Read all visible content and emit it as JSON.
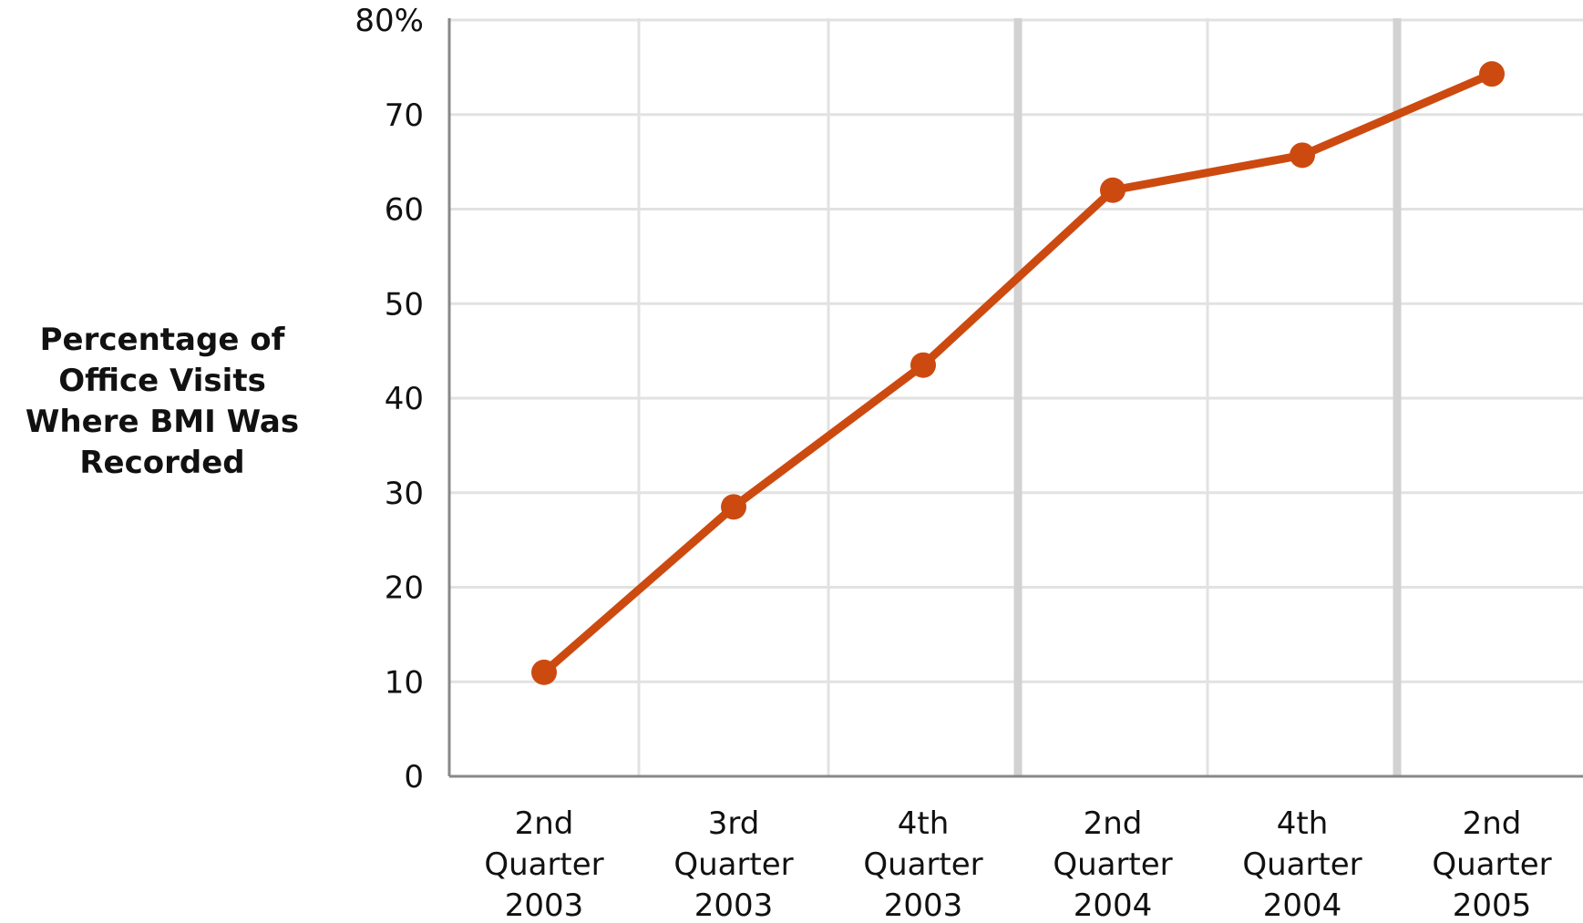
{
  "chart_data": {
    "type": "line",
    "xlabel": "",
    "ylabel": "Percentage of Office Visits Where BMI Was Recorded",
    "ylabel_lines": [
      "Percentage of",
      "Office Visits",
      "Where BMI Was",
      "Recorded"
    ],
    "ylim": [
      0,
      80
    ],
    "yticks": [
      0,
      10,
      20,
      30,
      40,
      50,
      60,
      70,
      80
    ],
    "ytick_labels": [
      "0",
      "10",
      "20",
      "30",
      "40",
      "50",
      "60",
      "70",
      "80%"
    ],
    "categories": [
      "2nd Quarter 2003",
      "3rd Quarter 2003",
      "4th Quarter 2003",
      "2nd Quarter 2004",
      "4th Quarter 2004",
      "2nd Quarter 2005"
    ],
    "category_lines": [
      [
        "2nd",
        "Quarter",
        "2003"
      ],
      [
        "3rd",
        "Quarter",
        "2003"
      ],
      [
        "4th",
        "Quarter",
        "2003"
      ],
      [
        "2nd",
        "Quarter",
        "2004"
      ],
      [
        "4th",
        "Quarter",
        "2004"
      ],
      [
        "2nd",
        "Quarter",
        "2005"
      ]
    ],
    "series": [
      {
        "values": [
          11,
          28.5,
          43.5,
          62,
          65.7,
          74.3
        ]
      }
    ],
    "grid": true,
    "colors": {
      "line": "#CC4A10",
      "grid": "#E2E2E2",
      "year_divider": "#D2D2D2",
      "axis": "#888888"
    }
  }
}
